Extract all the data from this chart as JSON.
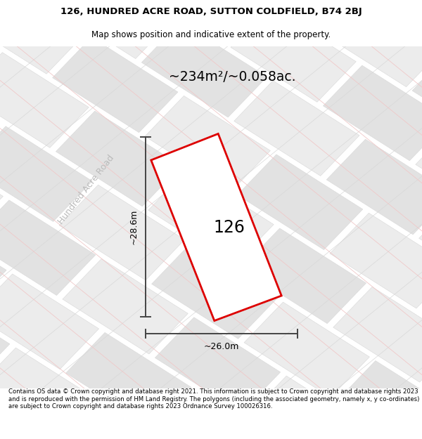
{
  "title_line1": "126, HUNDRED ACRE ROAD, SUTTON COLDFIELD, B74 2BJ",
  "title_line2": "Map shows position and indicative extent of the property.",
  "area_label": "~234m²/~0.058ac.",
  "plot_number": "126",
  "dim_height": "~28.6m",
  "dim_width": "~26.0m",
  "road_label": "Hundred Acre Road",
  "footer_text": "Contains OS data © Crown copyright and database right 2021. This information is subject to Crown copyright and database rights 2023 and is reproduced with the permission of HM Land Registry. The polygons (including the associated geometry, namely x, y co-ordinates) are subject to Crown copyright and database rights 2023 Ordnance Survey 100026316.",
  "map_bg": "#f5f5f5",
  "plot_fill": "#eeeeee",
  "plot_edge": "#dd0000",
  "tile_line_pink": "#f0c8c8",
  "tile_line_gray": "#d8d8d8",
  "tile_fill_light": "#ececec",
  "tile_fill_dark": "#e2e2e2",
  "dim_line_color": "#444444",
  "road_label_color": "#bbbbbb"
}
